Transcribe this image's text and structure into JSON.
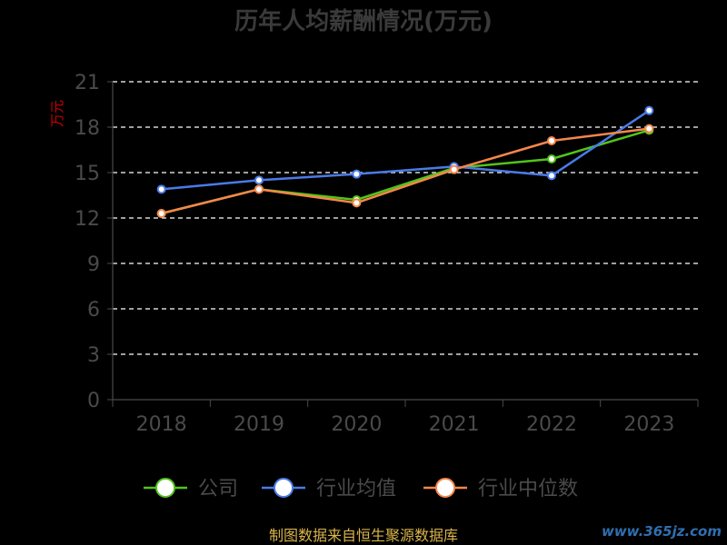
{
  "chart_data": {
    "type": "line",
    "title": "历年人均薪酬情况(万元)",
    "ylabel": "万元",
    "xlabel": "",
    "categories": [
      "2018",
      "2019",
      "2020",
      "2021",
      "2022",
      "2023"
    ],
    "ylim": [
      0,
      21
    ],
    "yticks": [
      0,
      3,
      6,
      9,
      12,
      15,
      18,
      21
    ],
    "grid": true,
    "legend_position": "bottom",
    "series": [
      {
        "name": "公司",
        "color": "#52c41a",
        "values": [
          12.3,
          13.9,
          13.2,
          15.3,
          15.9,
          17.8
        ]
      },
      {
        "name": "行业均值",
        "color": "#4a7be8",
        "values": [
          13.9,
          14.5,
          14.9,
          15.4,
          14.8,
          19.1
        ]
      },
      {
        "name": "行业中位数",
        "color": "#f5874a",
        "values": [
          12.3,
          13.9,
          13.0,
          15.2,
          17.1,
          17.9
        ]
      }
    ]
  },
  "footer": {
    "source": "制图数据来自恒生聚源数据库",
    "watermark": "www.365jz.com"
  }
}
